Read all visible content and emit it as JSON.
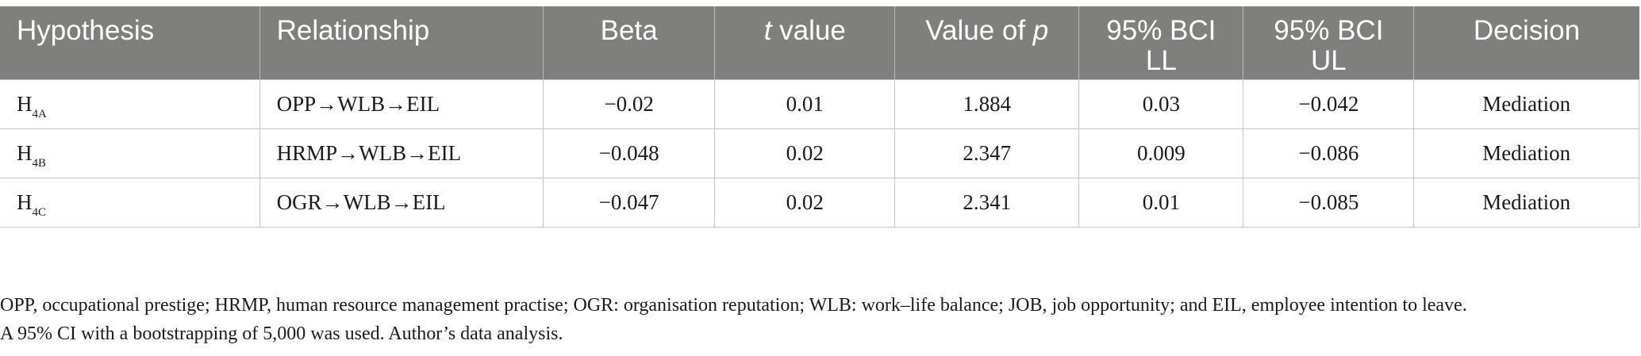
{
  "table": {
    "headers": [
      {
        "text": "Hypothesis"
      },
      {
        "text": "Relationship"
      },
      {
        "text": "Beta"
      },
      {
        "text_italic": "t",
        "text": " value"
      },
      {
        "text": "Value of ",
        "text_italic_suffix": "p"
      },
      {
        "line1": "95% BCI",
        "line2": "LL"
      },
      {
        "line1": "95% BCI",
        "line2": "UL"
      },
      {
        "text": "Decision"
      }
    ],
    "rows": [
      {
        "hyp_main": "H",
        "hyp_sub": "4A",
        "relationship": "OPP→WLB→EIL",
        "beta": "−0.02",
        "t": "0.01",
        "p": "1.884",
        "ll": "0.03",
        "ul": "−0.042",
        "decision": "Mediation"
      },
      {
        "hyp_main": "H",
        "hyp_sub": "4B",
        "relationship": "HRMP→WLB→EIL",
        "beta": "−0.048",
        "t": "0.02",
        "p": "2.347",
        "ll": "0.009",
        "ul": "−0.086",
        "decision": "Mediation"
      },
      {
        "hyp_main": "H",
        "hyp_sub": "4C",
        "relationship": "OGR→WLB→EIL",
        "beta": "−0.047",
        "t": "0.02",
        "p": "2.341",
        "ll": "0.01",
        "ul": "−0.085",
        "decision": "Mediation"
      }
    ]
  },
  "notes": {
    "line1": "OPP, occupational prestige; HRMP, human resource management practise; OGR: organisation reputation; WLB: work–life balance; JOB, job opportunity; and EIL, employee intention to leave.",
    "line2": "A 95% CI with a bootstrapping of 5,000 was used. Author’s data analysis."
  }
}
